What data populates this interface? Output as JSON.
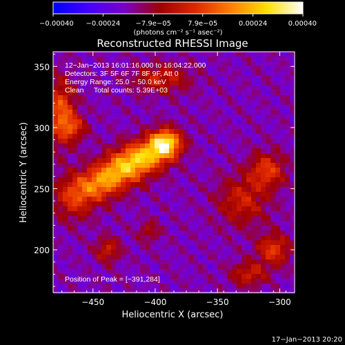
{
  "chart_data": {
    "type": "heatmap",
    "title": "Reconstructed RHESSI Image",
    "xlabel": "Heliocentric X (arcsec)",
    "ylabel": "Heliocentric Y (arcsec)",
    "xlim": [
      -482,
      -288
    ],
    "ylim": [
      165,
      362
    ],
    "x_ticks": [
      -450,
      -400,
      -350,
      -300
    ],
    "y_ticks": [
      200,
      250,
      300,
      350
    ],
    "x_tick_labels": [
      "−450",
      "−400",
      "−350",
      "−300"
    ],
    "y_tick_labels": [
      "200",
      "250",
      "300",
      "350"
    ],
    "colorbar": {
      "range": [
        -0.0004,
        0.0004
      ],
      "tick_values": [
        -0.0004,
        -0.00024,
        -7.9e-05,
        7.9e-05,
        0.00024,
        0.0004
      ],
      "tick_labels": [
        "−0.00040",
        "−0.00024",
        "−7.9e−05",
        "7.9e−05",
        "0.00024",
        "0.00040"
      ],
      "unit_label": "(photons cm⁻² s⁻¹ asec⁻²)",
      "stops": [
        "#0000ff",
        "#4400ff",
        "#7a00c8",
        "#a00000",
        "#e02800",
        "#ff8000",
        "#ffe000",
        "#ffffff"
      ]
    },
    "annotations": [
      "12−Jan−2013 16:01:16.000 to 16:04:22.000",
      "Detectors: 3F 5F 6F 7F 8F 9F, Att 0",
      "Energy Range: 25.0 − 50.0 keV",
      "Clean     Total counts: 5.39E+03",
      "Position of Peak = [−391,284]"
    ],
    "peak": {
      "x": -391,
      "y": 284
    },
    "features": [
      {
        "x": -392,
        "y": 287,
        "sx": 9,
        "sy": 8,
        "amp": 1.0
      },
      {
        "x": -410,
        "y": 276,
        "sx": 13,
        "sy": 9,
        "amp": 0.72
      },
      {
        "x": -428,
        "y": 265,
        "sx": 13,
        "sy": 9,
        "amp": 0.65
      },
      {
        "x": -445,
        "y": 253,
        "sx": 12,
        "sy": 9,
        "amp": 0.55
      },
      {
        "x": -465,
        "y": 243,
        "sx": 11,
        "sy": 12,
        "amp": 0.45
      },
      {
        "x": -476,
        "y": 312,
        "sx": 8,
        "sy": 18,
        "amp": 0.55
      },
      {
        "x": -465,
        "y": 300,
        "sx": 7,
        "sy": 7,
        "amp": 0.35
      },
      {
        "x": -310,
        "y": 265,
        "sx": 10,
        "sy": 10,
        "amp": 0.45
      },
      {
        "x": -330,
        "y": 240,
        "sx": 14,
        "sy": 14,
        "amp": 0.35
      },
      {
        "x": -305,
        "y": 200,
        "sx": 9,
        "sy": 9,
        "amp": 0.45
      },
      {
        "x": -325,
        "y": 180,
        "sx": 10,
        "sy": 7,
        "amp": 0.35
      },
      {
        "x": -395,
        "y": 340,
        "sx": 16,
        "sy": 8,
        "amp": 0.35
      },
      {
        "x": -438,
        "y": 200,
        "sx": 7,
        "sy": 7,
        "amp": 0.35
      },
      {
        "x": -405,
        "y": 215,
        "sx": 6,
        "sy": 6,
        "amp": 0.25
      }
    ]
  },
  "footer": {
    "timestamp": "17−Jan−2013 20:20"
  }
}
